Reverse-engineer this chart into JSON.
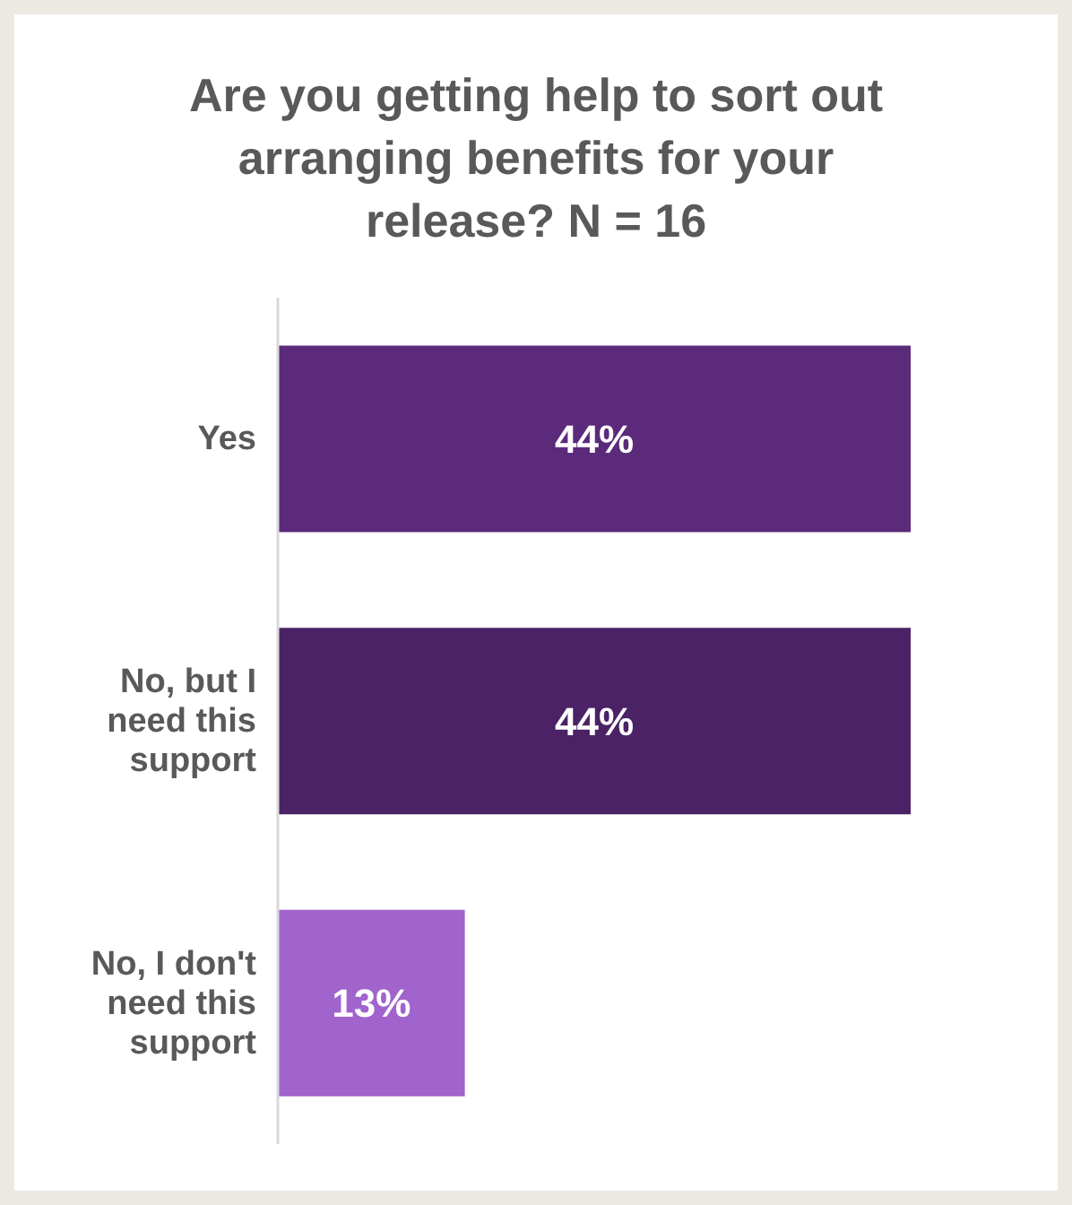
{
  "chart_data": {
    "type": "bar",
    "orientation": "horizontal",
    "title": "Are you getting help to sort out arranging benefits for your release? N = 16",
    "categories": [
      "Yes",
      "No, but I need this support",
      "No, I don't need this support"
    ],
    "values": [
      44,
      44,
      13
    ],
    "colors": [
      "#5c2a7a",
      "#4b2266",
      "#a163cc"
    ],
    "value_labels": [
      "44%",
      "44%",
      "13%"
    ]
  }
}
